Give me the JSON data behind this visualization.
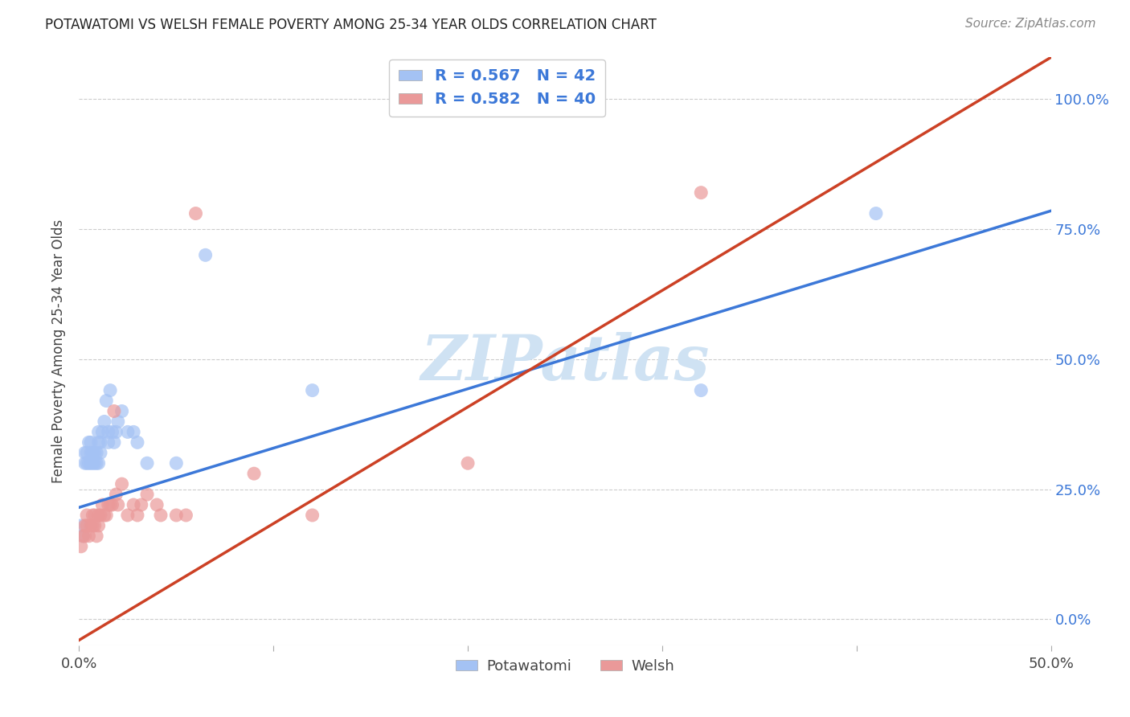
{
  "title": "POTAWATOMI VS WELSH FEMALE POVERTY AMONG 25-34 YEAR OLDS CORRELATION CHART",
  "source": "Source: ZipAtlas.com",
  "ylabel": "Female Poverty Among 25-34 Year Olds",
  "xlim": [
    0.0,
    0.5
  ],
  "ylim": [
    -0.05,
    1.08
  ],
  "yticks": [
    0.0,
    0.25,
    0.5,
    0.75,
    1.0
  ],
  "ytick_labels": [
    "0.0%",
    "25.0%",
    "50.0%",
    "75.0%",
    "100.0%"
  ],
  "xticks": [
    0.0,
    0.1,
    0.2,
    0.3,
    0.4,
    0.5
  ],
  "xtick_labels": [
    "0.0%",
    "",
    "",
    "",
    "",
    "50.0%"
  ],
  "potawatomi_R": 0.567,
  "potawatomi_N": 42,
  "welsh_R": 0.582,
  "welsh_N": 40,
  "blue_color": "#a4c2f4",
  "pink_color": "#ea9999",
  "blue_line_color": "#3c78d8",
  "pink_line_color": "#cc4125",
  "legend_label_color": "#3c78d8",
  "watermark": "ZIPatlas",
  "watermark_color": "#cfe2f3",
  "blue_line_x0": 0.0,
  "blue_line_y0": 0.215,
  "blue_line_x1": 0.5,
  "blue_line_y1": 0.785,
  "pink_line_x0": 0.0,
  "pink_line_y0": -0.04,
  "pink_line_x1": 0.5,
  "pink_line_y1": 1.08,
  "potawatomi_x": [
    0.001,
    0.002,
    0.003,
    0.003,
    0.004,
    0.004,
    0.005,
    0.005,
    0.006,
    0.006,
    0.006,
    0.007,
    0.007,
    0.008,
    0.008,
    0.009,
    0.009,
    0.01,
    0.01,
    0.01,
    0.011,
    0.011,
    0.012,
    0.013,
    0.014,
    0.015,
    0.015,
    0.016,
    0.017,
    0.018,
    0.019,
    0.02,
    0.022,
    0.025,
    0.028,
    0.03,
    0.035,
    0.05,
    0.065,
    0.12,
    0.32,
    0.41
  ],
  "potawatomi_y": [
    0.18,
    0.16,
    0.32,
    0.3,
    0.3,
    0.32,
    0.3,
    0.34,
    0.3,
    0.32,
    0.34,
    0.3,
    0.32,
    0.3,
    0.32,
    0.3,
    0.32,
    0.3,
    0.34,
    0.36,
    0.32,
    0.34,
    0.36,
    0.38,
    0.42,
    0.34,
    0.36,
    0.44,
    0.36,
    0.34,
    0.36,
    0.38,
    0.4,
    0.36,
    0.36,
    0.34,
    0.3,
    0.3,
    0.7,
    0.44,
    0.44,
    0.78
  ],
  "welsh_x": [
    0.001,
    0.002,
    0.003,
    0.003,
    0.004,
    0.004,
    0.005,
    0.006,
    0.007,
    0.007,
    0.008,
    0.008,
    0.009,
    0.01,
    0.01,
    0.011,
    0.012,
    0.013,
    0.014,
    0.015,
    0.016,
    0.017,
    0.018,
    0.019,
    0.02,
    0.022,
    0.025,
    0.028,
    0.03,
    0.032,
    0.035,
    0.04,
    0.042,
    0.05,
    0.055,
    0.06,
    0.09,
    0.12,
    0.2,
    0.32
  ],
  "welsh_y": [
    0.14,
    0.16,
    0.16,
    0.18,
    0.18,
    0.2,
    0.16,
    0.18,
    0.18,
    0.2,
    0.18,
    0.2,
    0.16,
    0.2,
    0.18,
    0.2,
    0.22,
    0.2,
    0.2,
    0.22,
    0.22,
    0.22,
    0.4,
    0.24,
    0.22,
    0.26,
    0.2,
    0.22,
    0.2,
    0.22,
    0.24,
    0.22,
    0.2,
    0.2,
    0.2,
    0.78,
    0.28,
    0.2,
    0.3,
    0.82
  ]
}
